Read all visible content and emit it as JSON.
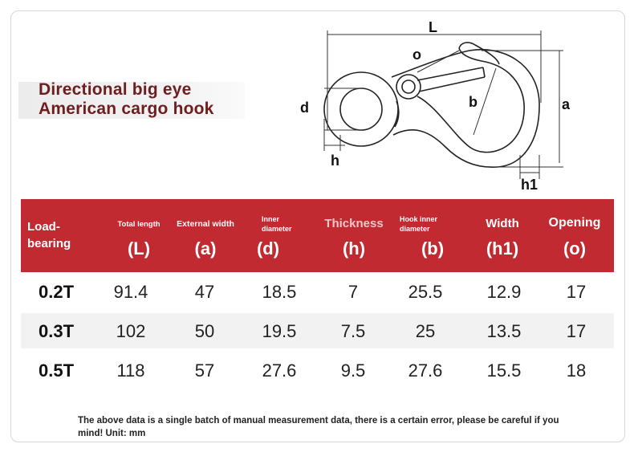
{
  "title": {
    "line1": "Directional big eye",
    "line2": "American cargo hook"
  },
  "diagram": {
    "labels": {
      "L": "L",
      "o": "o",
      "d": "d",
      "b": "b",
      "a": "a",
      "h": "h",
      "h1": "h1"
    }
  },
  "table": {
    "headers": [
      {
        "name": "Load-\nbearing",
        "symbol": ""
      },
      {
        "name": "Total length",
        "symbol": "(L)"
      },
      {
        "name": "External width",
        "symbol": "(a)"
      },
      {
        "name": "Inner\ndiameter",
        "symbol": "(d)"
      },
      {
        "name": "Thickness",
        "symbol": "(h)"
      },
      {
        "name": "Hook inner\ndiameter",
        "symbol": "(b)"
      },
      {
        "name": "Width",
        "symbol": "(h1)"
      },
      {
        "name": "Opening",
        "symbol": "(o)"
      }
    ],
    "rows": [
      [
        "0.2T",
        "91.4",
        "47",
        "18.5",
        "7",
        "25.5",
        "12.9",
        "17"
      ],
      [
        "0.3T",
        "102",
        "50",
        "19.5",
        "7.5",
        "25",
        "13.5",
        "17"
      ],
      [
        "0.5T",
        "118",
        "57",
        "27.6",
        "9.5",
        "27.6",
        "15.5",
        "18"
      ]
    ]
  },
  "note": "The above data is a single batch of manual measurement data, there is a certain error, please be careful if you mind! Unit: mm",
  "colors": {
    "header_red": "#c22a32",
    "title_text": "#6e1e1e",
    "row_stripe": "#f2f2f2"
  }
}
